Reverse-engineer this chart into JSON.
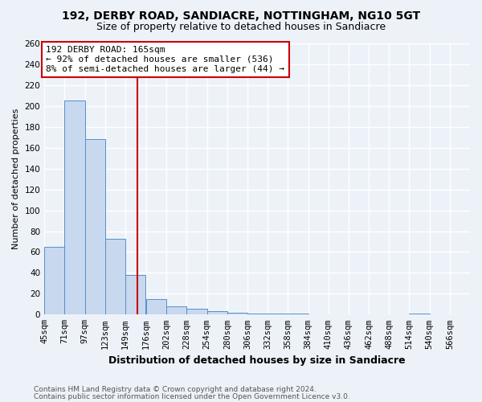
{
  "title1": "192, DERBY ROAD, SANDIACRE, NOTTINGHAM, NG10 5GT",
  "title2": "Size of property relative to detached houses in Sandiacre",
  "xlabel": "Distribution of detached houses by size in Sandiacre",
  "ylabel": "Number of detached properties",
  "bins": [
    45,
    71,
    97,
    123,
    149,
    176,
    202,
    228,
    254,
    280,
    306,
    332,
    358,
    384,
    410,
    436,
    462,
    488,
    514,
    540,
    566
  ],
  "counts": [
    65,
    205,
    168,
    73,
    38,
    15,
    8,
    6,
    3,
    2,
    1,
    1,
    1,
    0,
    0,
    0,
    0,
    0,
    1,
    0,
    0
  ],
  "bar_color": "#c8d8ee",
  "bar_edge_color": "#5590c8",
  "ref_line_x": 165,
  "ref_line_color": "#cc0000",
  "annotation_text": "192 DERBY ROAD: 165sqm\n← 92% of detached houses are smaller (536)\n8% of semi-detached houses are larger (44) →",
  "annotation_box_color": "#ffffff",
  "annotation_box_edge_color": "#cc0000",
  "ylim": [
    0,
    260
  ],
  "yticks": [
    0,
    20,
    40,
    60,
    80,
    100,
    120,
    140,
    160,
    180,
    200,
    220,
    240,
    260
  ],
  "footer1": "Contains HM Land Registry data © Crown copyright and database right 2024.",
  "footer2": "Contains public sector information licensed under the Open Government Licence v3.0.",
  "background_color": "#edf2f9",
  "grid_color": "#ffffff",
  "title_fontsize": 10,
  "subtitle_fontsize": 9,
  "ylabel_fontsize": 8,
  "xlabel_fontsize": 9,
  "tick_fontsize": 7.5,
  "footer_fontsize": 6.5,
  "annotation_fontsize": 8
}
